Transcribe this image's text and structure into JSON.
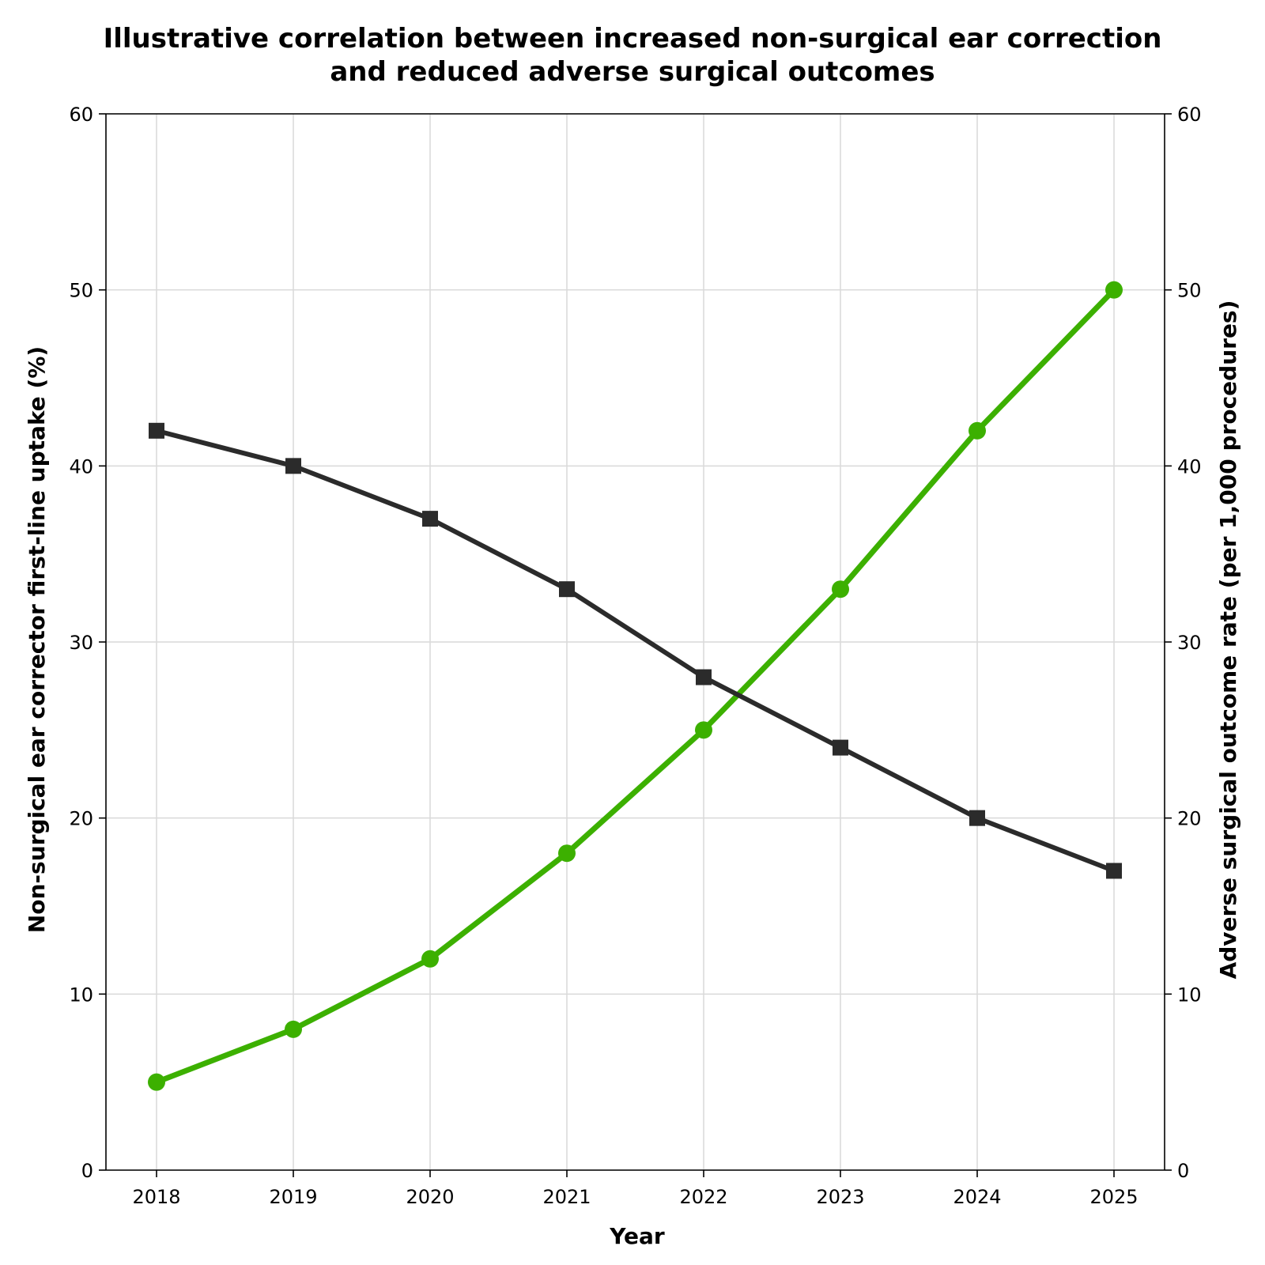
{
  "chart_data": {
    "type": "line",
    "title_lines": [
      "Illustrative correlation between increased non-surgical ear correction",
      "and reduced adverse surgical outcomes"
    ],
    "xlabel": "Year",
    "ylabel_left": "Non-surgical ear corrector first-line uptake (%)",
    "ylabel_right": "Adverse surgical outcome rate (per 1,000 procedures)",
    "x": [
      "2018",
      "2019",
      "2020",
      "2021",
      "2022",
      "2023",
      "2024",
      "2025"
    ],
    "ylim_left": [
      0,
      60
    ],
    "ylim_right": [
      0,
      60
    ],
    "yticks": [
      0,
      10,
      20,
      30,
      40,
      50,
      60
    ],
    "grid": true,
    "series": [
      {
        "name": "Non-surgical ear corrector first-line uptake (%)",
        "axis": "left",
        "color": "#3cb000",
        "marker": "circle",
        "values": [
          5,
          8,
          12,
          18,
          25,
          33,
          42,
          50
        ]
      },
      {
        "name": "Adverse surgical outcome rate (per 1,000 procedures)",
        "axis": "right",
        "color": "#2b2b2b",
        "marker": "square",
        "values": [
          42,
          40,
          37,
          33,
          28,
          24,
          20,
          17
        ]
      }
    ]
  }
}
